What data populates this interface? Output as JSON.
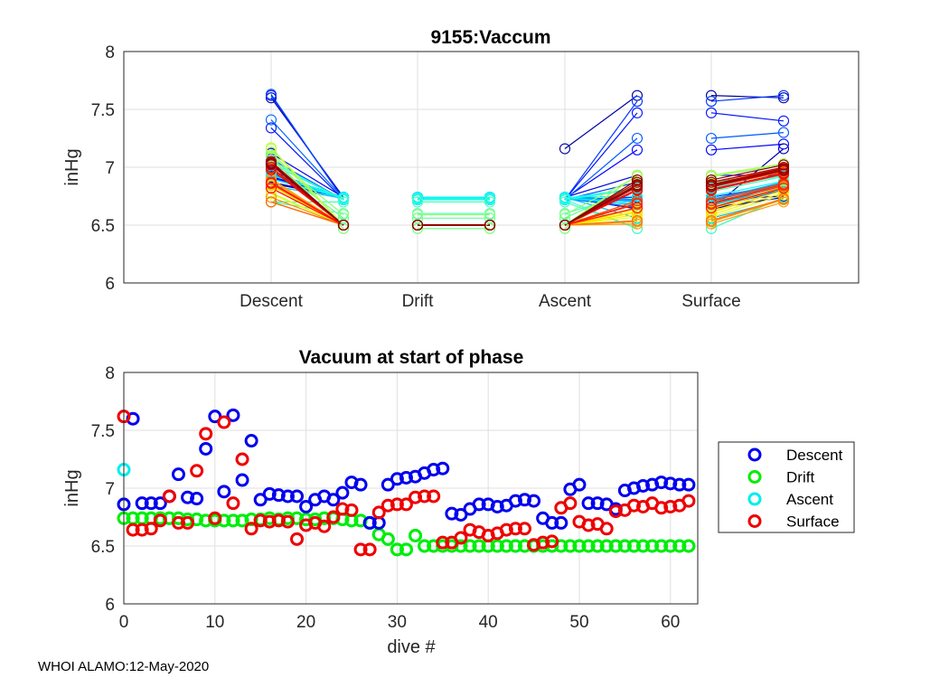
{
  "footer": "WHOI ALAMO:12-May-2020",
  "chart_data": [
    {
      "type": "line",
      "title": "9155:Vaccum",
      "xlabel": "",
      "ylabel": "inHg",
      "ylim": [
        6,
        8
      ],
      "yticks": [
        "6",
        "6.5",
        "7",
        "7.5",
        "8"
      ],
      "categories": [
        "Descent",
        "Drift",
        "Ascent",
        "Surface"
      ],
      "grid": true,
      "colormap": [
        "#0000a0",
        "#0000ff",
        "#0080ff",
        "#00ffff",
        "#80ff80",
        "#ffff00",
        "#ff8000",
        "#ff0000",
        "#800000"
      ],
      "descent": [
        6.86,
        7.6,
        6.87,
        6.87,
        6.87,
        6.93,
        7.12,
        6.92,
        6.91,
        7.34,
        7.62,
        6.97,
        7.63,
        7.07,
        7.41,
        6.9,
        6.95,
        6.94,
        6.93,
        6.93,
        6.84,
        6.9,
        6.93,
        6.9,
        6.96,
        7.05,
        7.03,
        6.7,
        6.7,
        7.03,
        7.08,
        7.09,
        7.1,
        7.13,
        7.16,
        7.17,
        6.78,
        6.77,
        6.82,
        6.86,
        6.86,
        6.84,
        6.85,
        6.89,
        6.9,
        6.89,
        6.74,
        6.7,
        6.7,
        6.99,
        7.03,
        6.87,
        6.87,
        6.86,
        6.82,
        6.98,
        7.0,
        7.02,
        7.03,
        7.05,
        7.04,
        7.03,
        7.03
      ],
      "drift": [
        6.74,
        6.74,
        6.74,
        6.74,
        6.74,
        6.74,
        6.74,
        6.73,
        6.73,
        6.72,
        6.72,
        6.72,
        6.72,
        6.72,
        6.73,
        6.73,
        6.74,
        6.73,
        6.74,
        6.74,
        6.73,
        6.73,
        6.74,
        6.74,
        6.73,
        6.72,
        6.72,
        6.7,
        6.6,
        6.56,
        6.47,
        6.47,
        6.59,
        6.5,
        6.5,
        6.5,
        6.5,
        6.5,
        6.5,
        6.5,
        6.5,
        6.5,
        6.5,
        6.5,
        6.5,
        6.5,
        6.5,
        6.5,
        6.5,
        6.5,
        6.5,
        6.5,
        6.5,
        6.5,
        6.5,
        6.5,
        6.5,
        6.5,
        6.5,
        6.5,
        6.5,
        6.5,
        6.5
      ],
      "ascent": [
        7.16,
        6.74,
        6.74,
        6.74,
        6.74,
        6.74,
        6.74,
        6.73,
        6.73,
        6.72,
        6.72,
        6.72,
        6.72,
        6.72,
        6.73,
        6.73,
        6.74,
        6.73,
        6.74,
        6.74,
        6.73,
        6.73,
        6.74,
        6.74,
        6.73,
        6.72,
        6.72,
        6.7,
        6.6,
        6.56,
        6.47,
        6.47,
        6.59,
        6.5,
        6.5,
        6.5,
        6.5,
        6.5,
        6.5,
        6.5,
        6.5,
        6.5,
        6.5,
        6.5,
        6.5,
        6.5,
        6.5,
        6.5,
        6.5,
        6.5,
        6.5,
        6.5,
        6.5,
        6.5,
        6.5,
        6.5,
        6.5,
        6.5,
        6.5,
        6.5,
        6.5,
        6.5,
        6.5
      ],
      "surface": [
        7.62,
        6.64,
        6.64,
        6.65,
        6.72,
        6.93,
        6.7,
        6.7,
        7.15,
        7.47,
        6.74,
        7.57,
        6.87,
        7.25,
        6.65,
        6.72,
        6.71,
        6.72,
        6.71,
        6.56,
        6.68,
        6.7,
        6.67,
        6.75,
        6.82,
        6.81,
        6.47,
        6.47,
        6.79,
        6.85,
        6.86,
        6.86,
        6.92,
        6.93,
        6.93,
        6.53,
        6.53,
        6.57,
        6.64,
        6.62,
        6.59,
        6.61,
        6.64,
        6.65,
        6.65,
        6.51,
        6.53,
        6.54,
        6.83,
        6.87,
        6.71,
        6.68,
        6.69,
        6.65,
        6.8,
        6.81,
        6.85,
        6.84,
        6.87,
        6.83,
        6.84,
        6.85,
        6.89
      ],
      "surface_end": [
        7.6,
        7.16,
        6.74,
        6.74,
        6.75,
        6.93,
        6.8,
        6.8,
        7.2,
        7.4,
        6.85,
        7.62,
        6.95,
        7.3,
        6.8,
        6.86,
        6.86,
        6.87,
        6.85,
        6.72,
        6.82,
        6.83,
        6.81,
        6.88,
        6.94,
        6.93,
        6.74,
        6.74,
        6.92,
        6.96,
        6.97,
        6.97,
        7.02,
        7.03,
        7.03,
        6.72,
        6.72,
        6.76,
        6.82,
        6.8,
        6.78,
        6.8,
        6.82,
        6.83,
        6.83,
        6.7,
        6.72,
        6.73,
        6.96,
        6.99,
        6.86,
        6.84,
        6.85,
        6.82,
        6.94,
        6.95,
        6.98,
        6.97,
        7.0,
        6.97,
        6.98,
        6.99,
        7.02
      ]
    },
    {
      "type": "scatter",
      "title": "Vacuum at start of phase",
      "xlabel": "dive #",
      "ylabel": "inHg",
      "xlim": [
        0,
        63
      ],
      "ylim": [
        6,
        8
      ],
      "xticks": [
        "0",
        "10",
        "20",
        "30",
        "40",
        "50",
        "60"
      ],
      "yticks": [
        "6",
        "6.5",
        "7",
        "7.5",
        "8"
      ],
      "grid": true,
      "legend_position": "outside-right",
      "series": [
        {
          "name": "Descent",
          "color": "#0000ee"
        },
        {
          "name": "Drift",
          "color": "#00ee00"
        },
        {
          "name": "Ascent",
          "color": "#00eeee"
        },
        {
          "name": "Surface",
          "color": "#ee0000"
        }
      ]
    }
  ]
}
